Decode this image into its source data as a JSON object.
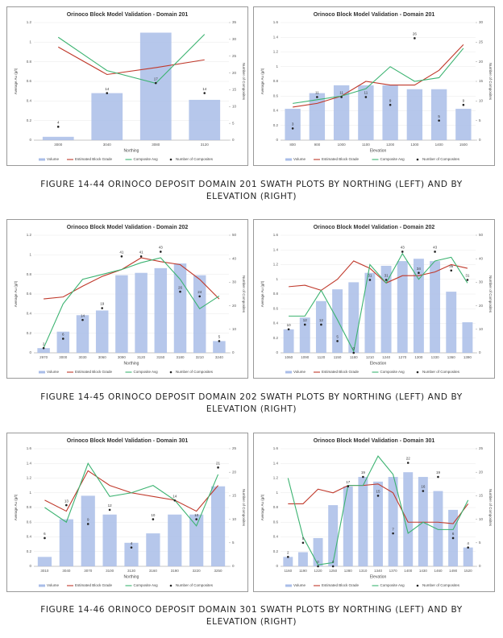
{
  "captions": [
    "FIGURE 14-44 ORINOCO DEPOSIT DOMAIN 201 SWATH PLOTS BY NORTHING (LEFT) AND BY ELEVATION (RIGHT)",
    "FIGURE 14-45 ORINOCO DEPOSIT DOMAIN 202 SWATH PLOTS BY NORTHING (LEFT) AND BY ELEVATION (RIGHT)",
    "FIGURE 14-46 ORINOCO DEPOSIT DOMAIN 301 SWATH PLOTS BY NORTHING (LEFT) AND BY ELEVATION (RIGHT)"
  ],
  "chart_data": [
    {
      "type": "combo",
      "title": "Orinoco Block Model Validation - Domain 201",
      "x_label": "Northing",
      "y_label": "Average Au (g/t)",
      "y2_label": "Number of Composites",
      "categories": [
        "3000",
        "3040",
        "3080",
        "3120"
      ],
      "ylim": [
        0,
        1.2
      ],
      "yticks": [
        0,
        0.2,
        0.4,
        0.6,
        0.8,
        1,
        1.2
      ],
      "y2lim": [
        0,
        35
      ],
      "y2ticks": [
        0,
        5,
        10,
        15,
        20,
        25,
        30,
        35
      ],
      "series": [
        {
          "name": "Volume",
          "type": "bar",
          "axis": "y2",
          "color": "#a9bde8",
          "values": [
            1,
            14,
            32,
            12
          ]
        },
        {
          "name": "Estimated Block Grade",
          "type": "line",
          "color": "#c0392b",
          "values": [
            0.95,
            0.67,
            0.74,
            0.82
          ]
        },
        {
          "name": "Composite Avg",
          "type": "line",
          "color": "#3cb371",
          "values": [
            1.05,
            0.71,
            0.58,
            1.08
          ]
        },
        {
          "name": "Number of Composites",
          "type": "scatter",
          "axis": "y2",
          "color": "#222",
          "values": [
            4,
            14,
            17,
            14
          ]
        }
      ]
    },
    {
      "type": "combo",
      "title": "Orinoco Block Model Validation - Domain 201",
      "x_label": "Elevation",
      "y_label": "Average Au (g/t)",
      "y2_label": "Number of Composites",
      "categories": [
        "800",
        "900",
        "1000",
        "1100",
        "1200",
        "1300",
        "1400",
        "1500"
      ],
      "ylim": [
        0,
        1.6
      ],
      "yticks": [
        0,
        0.2,
        0.4,
        0.6,
        0.8,
        1,
        1.2,
        1.4,
        1.6
      ],
      "y2lim": [
        0,
        30
      ],
      "y2ticks": [
        0,
        5,
        10,
        15,
        20,
        25,
        30
      ],
      "series": [
        {
          "name": "Volume",
          "type": "bar",
          "axis": "y2",
          "color": "#a9bde8",
          "values": [
            8,
            12,
            14,
            14,
            14,
            13,
            13,
            8
          ]
        },
        {
          "name": "Estimated Block Grade",
          "type": "line",
          "color": "#c0392b",
          "values": [
            0.45,
            0.5,
            0.6,
            0.8,
            0.75,
            0.75,
            0.95,
            1.3
          ]
        },
        {
          "name": "Composite Avg",
          "type": "line",
          "color": "#3cb371",
          "values": [
            0.5,
            0.55,
            0.6,
            0.7,
            1.0,
            0.8,
            0.85,
            1.25
          ]
        },
        {
          "name": "Number of Composites",
          "type": "scatter",
          "axis": "y2",
          "color": "#222",
          "values": [
            3,
            11,
            11,
            11,
            9,
            26,
            5,
            9
          ]
        }
      ]
    },
    {
      "type": "combo",
      "title": "Orinoco Block Model Validation - Domain 202",
      "x_label": "Northing",
      "y_label": "Average Au (g/t)",
      "y2_label": "Number of Composites",
      "categories": [
        "2970",
        "3000",
        "3030",
        "3060",
        "3090",
        "3120",
        "3150",
        "3180",
        "3210",
        "3240"
      ],
      "ylim": [
        0,
        1.2
      ],
      "yticks": [
        0,
        0.2,
        0.4,
        0.6,
        0.8,
        1,
        1.2
      ],
      "y2lim": [
        0,
        50
      ],
      "y2ticks": [
        0,
        10,
        20,
        30,
        40,
        50
      ],
      "series": [
        {
          "name": "Volume",
          "type": "bar",
          "axis": "y2",
          "color": "#a9bde8",
          "values": [
            2,
            9,
            16,
            18,
            33,
            34,
            36,
            38,
            33,
            5
          ]
        },
        {
          "name": "Estimated Block Grade",
          "type": "line",
          "color": "#c0392b",
          "values": [
            0.55,
            0.57,
            0.68,
            0.78,
            0.85,
            0.97,
            0.93,
            0.9,
            0.75,
            0.55
          ]
        },
        {
          "name": "Composite Avg",
          "type": "line",
          "color": "#3cb371",
          "values": [
            0.05,
            0.5,
            0.75,
            0.8,
            0.85,
            0.92,
            0.97,
            0.75,
            0.45,
            0.58
          ]
        },
        {
          "name": "Number of Composites",
          "type": "scatter",
          "axis": "y2",
          "color": "#222",
          "values": [
            2,
            6,
            14,
            19,
            41,
            41,
            43,
            26,
            24,
            5
          ]
        }
      ]
    },
    {
      "type": "combo",
      "title": "Orinoco Block Model Validation - Domain 202",
      "x_label": "Elevation",
      "y_label": "Average Au (g/t)",
      "y2_label": "Number of Composites",
      "categories": [
        "1060",
        "1090",
        "1120",
        "1150",
        "1180",
        "1210",
        "1240",
        "1270",
        "1300",
        "1330",
        "1360",
        "1390"
      ],
      "ylim": [
        0,
        1.6
      ],
      "yticks": [
        0,
        0.2,
        0.4,
        0.6,
        0.8,
        1,
        1.2,
        1.4,
        1.6
      ],
      "y2lim": [
        0,
        50
      ],
      "y2ticks": [
        0,
        10,
        20,
        30,
        40,
        50
      ],
      "series": [
        {
          "name": "Volume",
          "type": "bar",
          "axis": "y2",
          "color": "#a9bde8",
          "values": [
            10,
            15,
            22,
            27,
            30,
            34,
            37,
            39,
            40,
            39,
            26,
            13
          ]
        },
        {
          "name": "Estimated Block Grade",
          "type": "line",
          "color": "#c0392b",
          "values": [
            0.9,
            0.92,
            0.85,
            1.0,
            1.25,
            1.15,
            0.95,
            1.05,
            1.05,
            1.1,
            1.2,
            1.15
          ]
        },
        {
          "name": "Composite Avg",
          "type": "line",
          "color": "#3cb371",
          "values": [
            0.5,
            0.5,
            0.85,
            0.45,
            0.02,
            1.2,
            0.95,
            1.35,
            1.0,
            1.25,
            1.3,
            0.95
          ]
        },
        {
          "name": "Number of Composites",
          "type": "scatter",
          "axis": "y2",
          "color": "#222",
          "values": [
            10,
            12,
            12,
            5,
            0,
            31,
            31,
            43,
            34,
            43,
            35,
            31
          ]
        }
      ]
    },
    {
      "type": "combo",
      "title": "Orinoco Block Model Validation - Domain 301",
      "x_label": "Northing",
      "y_label": "Average Au (g/t)",
      "y2_label": "Number of Composites",
      "categories": [
        "3010",
        "3040",
        "3070",
        "3100",
        "3130",
        "3160",
        "3190",
        "3220",
        "3250"
      ],
      "ylim": [
        0,
        1.6
      ],
      "yticks": [
        0,
        0.2,
        0.4,
        0.6,
        0.8,
        1,
        1.2,
        1.4,
        1.6
      ],
      "y2lim": [
        0,
        25
      ],
      "y2ticks": [
        0,
        5,
        10,
        15,
        20,
        25
      ],
      "series": [
        {
          "name": "Volume",
          "type": "bar",
          "axis": "y2",
          "color": "#a9bde8",
          "values": [
            2,
            10,
            15,
            11,
            5,
            7,
            11,
            11,
            17
          ]
        },
        {
          "name": "Estimated Block Grade",
          "type": "line",
          "color": "#c0392b",
          "values": [
            0.9,
            0.75,
            1.3,
            1.1,
            1.0,
            0.95,
            0.9,
            0.75,
            1.1
          ]
        },
        {
          "name": "Composite Avg",
          "type": "line",
          "color": "#3cb371",
          "values": [
            0.8,
            0.6,
            1.4,
            0.95,
            1.0,
            1.1,
            0.9,
            0.55,
            1.25
          ]
        },
        {
          "name": "Number of Composites",
          "type": "scatter",
          "axis": "y2",
          "color": "#222",
          "values": [
            6,
            13,
            9,
            12,
            4,
            10,
            14,
            10,
            21
          ]
        }
      ]
    },
    {
      "type": "combo",
      "title": "Orinoco Block Model Validation - Domain 301",
      "x_label": "Elevation",
      "y_label": "Average Au (g/t)",
      "y2_label": "Number of Composites",
      "categories": [
        "1160",
        "1190",
        "1220",
        "1250",
        "1280",
        "1310",
        "1340",
        "1370",
        "1400",
        "1430",
        "1460",
        "1490",
        "1520"
      ],
      "ylim": [
        0,
        1.6
      ],
      "yticks": [
        0,
        0.2,
        0.4,
        0.6,
        0.8,
        1,
        1.2,
        1.4,
        1.6
      ],
      "y2lim": [
        0,
        25
      ],
      "y2ticks": [
        0,
        5,
        10,
        15,
        20,
        25
      ],
      "series": [
        {
          "name": "Volume",
          "type": "bar",
          "axis": "y2",
          "color": "#a9bde8",
          "values": [
            2,
            3,
            6,
            13,
            17,
            19,
            18,
            19,
            20,
            19,
            16,
            12,
            4
          ]
        },
        {
          "name": "Estimated Block Grade",
          "type": "line",
          "color": "#c0392b",
          "values": [
            0.85,
            0.85,
            1.05,
            1.0,
            1.1,
            1.1,
            1.12,
            1.0,
            0.6,
            0.6,
            0.6,
            0.58,
            0.85
          ]
        },
        {
          "name": "Composite Avg",
          "type": "line",
          "color": "#3cb371",
          "values": [
            1.2,
            0.4,
            0.02,
            0.05,
            1.1,
            1.1,
            1.5,
            1.25,
            0.45,
            0.6,
            0.5,
            0.5,
            0.9
          ]
        },
        {
          "name": "Number of Composites",
          "type": "scatter",
          "axis": "y2",
          "color": "#222",
          "values": [
            2,
            5,
            0,
            0,
            17,
            19,
            15,
            7,
            22,
            16,
            19,
            6,
            4
          ]
        }
      ]
    }
  ]
}
